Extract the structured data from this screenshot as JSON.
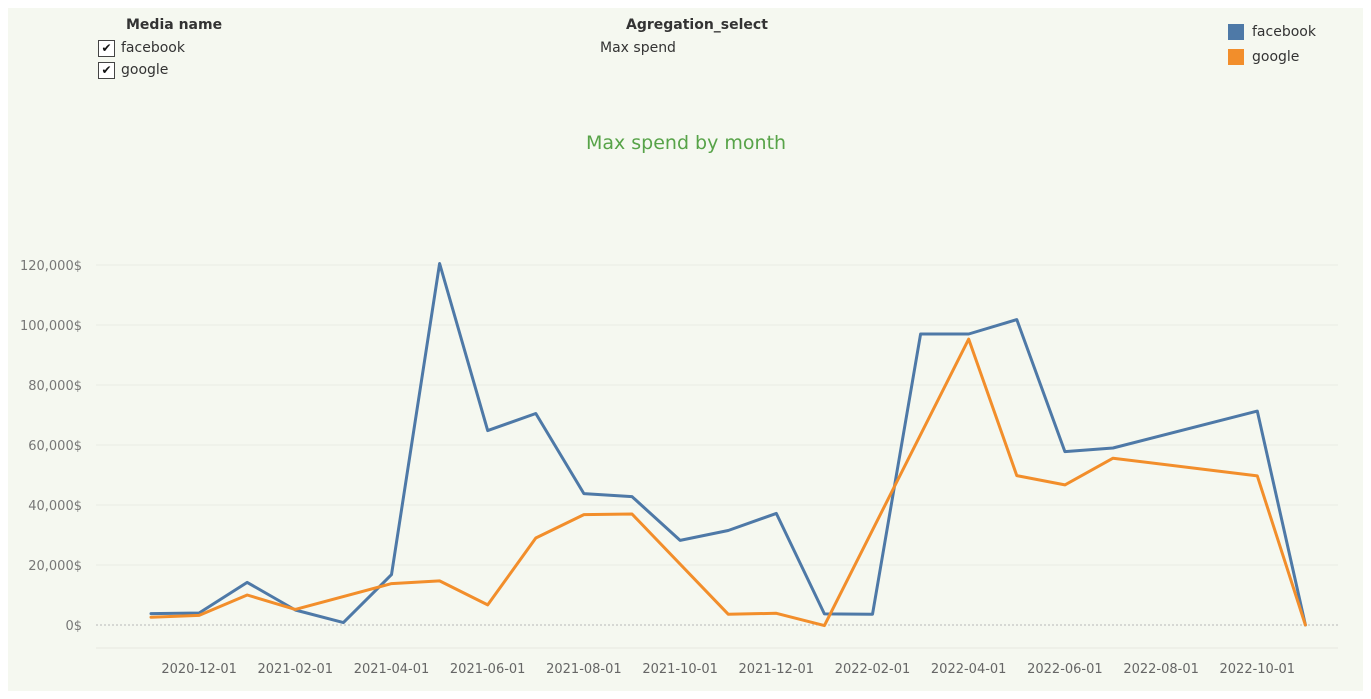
{
  "filters": {
    "media": {
      "title": "Media name",
      "options": [
        {
          "label": "facebook",
          "checked": true
        },
        {
          "label": "google",
          "checked": true
        }
      ]
    },
    "aggregation": {
      "title": "Agregation_select",
      "value": "Max spend"
    }
  },
  "legend": [
    {
      "label": "facebook",
      "color": "#4e79a7"
    },
    {
      "label": "google",
      "color": "#f28e2b"
    }
  ],
  "chart_data": {
    "type": "line",
    "title": "Max spend by month",
    "xlabel": "",
    "ylabel": "",
    "x_tick_labels": [
      "2020-12-01",
      "2021-02-01",
      "2021-04-01",
      "2021-06-01",
      "2021-08-01",
      "2021-10-01",
      "2021-12-01",
      "2022-02-01",
      "2022-04-01",
      "2022-06-01",
      "2022-08-01",
      "2022-10-01"
    ],
    "y_tick_labels": [
      "0$",
      "20,000$",
      "40,000$",
      "60,000$",
      "80,000$",
      "100,000$",
      "120,000$"
    ],
    "ylim": [
      0,
      125000
    ],
    "y_ticks": [
      0,
      20000,
      40000,
      60000,
      80000,
      100000,
      120000
    ],
    "grid": true,
    "legend_position": "top-right",
    "x": [
      "2020-11-01",
      "2020-12-01",
      "2021-01-01",
      "2021-02-01",
      "2021-03-01",
      "2021-04-01",
      "2021-05-01",
      "2021-06-01",
      "2021-07-01",
      "2021-08-01",
      "2021-09-01",
      "2021-10-01",
      "2021-11-01",
      "2021-12-01",
      "2022-01-01",
      "2022-02-01",
      "2022-03-01",
      "2022-04-01",
      "2022-05-01",
      "2022-06-01",
      "2022-07-01",
      "2022-08-01",
      "2022-09-01",
      "2022-10-01",
      "2022-11-01"
    ],
    "series": [
      {
        "name": "facebook",
        "color": "#4e79a7",
        "points": [
          [
            "2020-11-01",
            3800
          ],
          [
            "2020-12-01",
            4000
          ],
          [
            "2021-01-01",
            14200
          ],
          [
            "2021-02-01",
            5000
          ],
          [
            "2021-03-01",
            800
          ],
          [
            "2021-04-01",
            16800
          ],
          [
            "2021-05-01",
            120500
          ],
          [
            "2021-06-01",
            64800
          ],
          [
            "2021-07-01",
            70500
          ],
          [
            "2021-08-01",
            43800
          ],
          [
            "2021-09-01",
            42800
          ],
          [
            "2021-10-01",
            28200
          ],
          [
            "2021-11-01",
            31500
          ],
          [
            "2021-12-01",
            37200
          ],
          [
            "2022-01-01",
            3700
          ],
          [
            "2022-02-01",
            3600
          ],
          [
            "2022-03-01",
            97000
          ],
          [
            "2022-04-01",
            97000
          ],
          [
            "2022-05-01",
            101800
          ],
          [
            "2022-06-01",
            57800
          ],
          [
            "2022-07-01",
            59000
          ],
          [
            "2022-10-01",
            71300
          ],
          [
            "2022-11-01",
            0
          ]
        ]
      },
      {
        "name": "google",
        "color": "#f28e2b",
        "points": [
          [
            "2020-11-01",
            2600
          ],
          [
            "2020-12-01",
            3200
          ],
          [
            "2021-01-01",
            10000
          ],
          [
            "2021-02-01",
            5200
          ],
          [
            "2021-04-01",
            13800
          ],
          [
            "2021-05-01",
            14700
          ],
          [
            "2021-06-01",
            6700
          ],
          [
            "2021-07-01",
            29000
          ],
          [
            "2021-08-01",
            36800
          ],
          [
            "2021-09-01",
            37000
          ],
          [
            "2021-11-01",
            3600
          ],
          [
            "2021-12-01",
            3900
          ],
          [
            "2022-01-01",
            -200
          ],
          [
            "2022-04-01",
            95300
          ],
          [
            "2022-05-01",
            49800
          ],
          [
            "2022-06-01",
            46700
          ],
          [
            "2022-07-01",
            55600
          ],
          [
            "2022-10-01",
            49700
          ],
          [
            "2022-11-01",
            0
          ]
        ]
      }
    ]
  }
}
